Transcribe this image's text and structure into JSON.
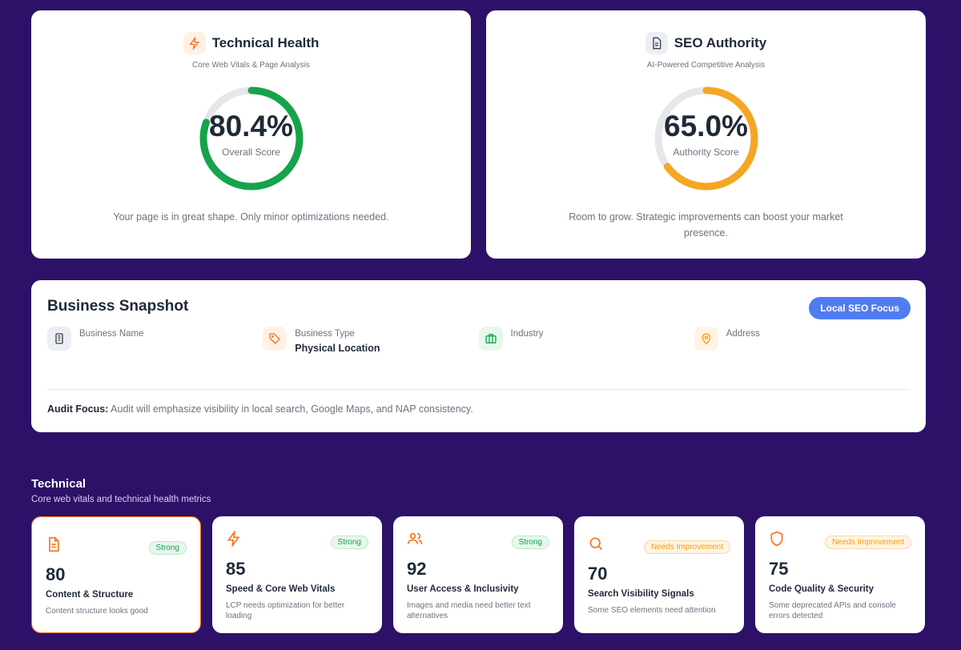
{
  "technical_health": {
    "title": "Technical Health",
    "subtitle": "Core Web Vitals & Page Analysis",
    "score": 80.4,
    "score_text": "80.4%",
    "score_label": "Overall Score",
    "description": "Your page is in great shape. Only minor optimizations needed.",
    "color": "#16a34a",
    "icon": "lightning-icon"
  },
  "seo_authority": {
    "title": "SEO Authority",
    "subtitle": "AI-Powered Competitive Analysis",
    "score": 65.0,
    "score_text": "65.0%",
    "score_label": "Authority Score",
    "description": "Room to grow. Strategic improvements can boost your market presence.",
    "color": "#f5a623",
    "icon": "document-icon"
  },
  "snapshot": {
    "title": "Business Snapshot",
    "badge": "Local SEO Focus",
    "fields": [
      {
        "label": "Business Name",
        "value": "",
        "icon": "building-icon"
      },
      {
        "label": "Business Type",
        "value": "Physical Location",
        "icon": "tag-icon"
      },
      {
        "label": "Industry",
        "value": "",
        "icon": "briefcase-icon"
      },
      {
        "label": "Address",
        "value": "",
        "icon": "map-pin-icon"
      }
    ],
    "focus_label": "Audit Focus:",
    "focus_text": " Audit will emphasize visibility in local search, Google Maps, and NAP consistency."
  },
  "technical": {
    "title": "Technical",
    "subtitle": "Core web vitals and technical health metrics",
    "metrics": [
      {
        "score": "80",
        "title": "Content & Structure",
        "desc": "Content structure looks good",
        "badge": "Strong",
        "icon": "document-icon"
      },
      {
        "score": "85",
        "title": "Speed & Core Web Vitals",
        "desc": "LCP needs optimization for better loading",
        "badge": "Strong",
        "icon": "lightning-icon"
      },
      {
        "score": "92",
        "title": "User Access & Inclusivity",
        "desc": "Images and media need better text alternatives",
        "badge": "Strong",
        "icon": "users-icon"
      },
      {
        "score": "70",
        "title": "Search Visibility Signals",
        "desc": "Some SEO elements need attention",
        "badge": "Needs Improvement",
        "icon": "search-icon"
      },
      {
        "score": "75",
        "title": "Code Quality & Security",
        "desc": "Some deprecated APIs and console errors detected",
        "badge": "Needs Improvement",
        "icon": "shield-icon"
      }
    ]
  }
}
